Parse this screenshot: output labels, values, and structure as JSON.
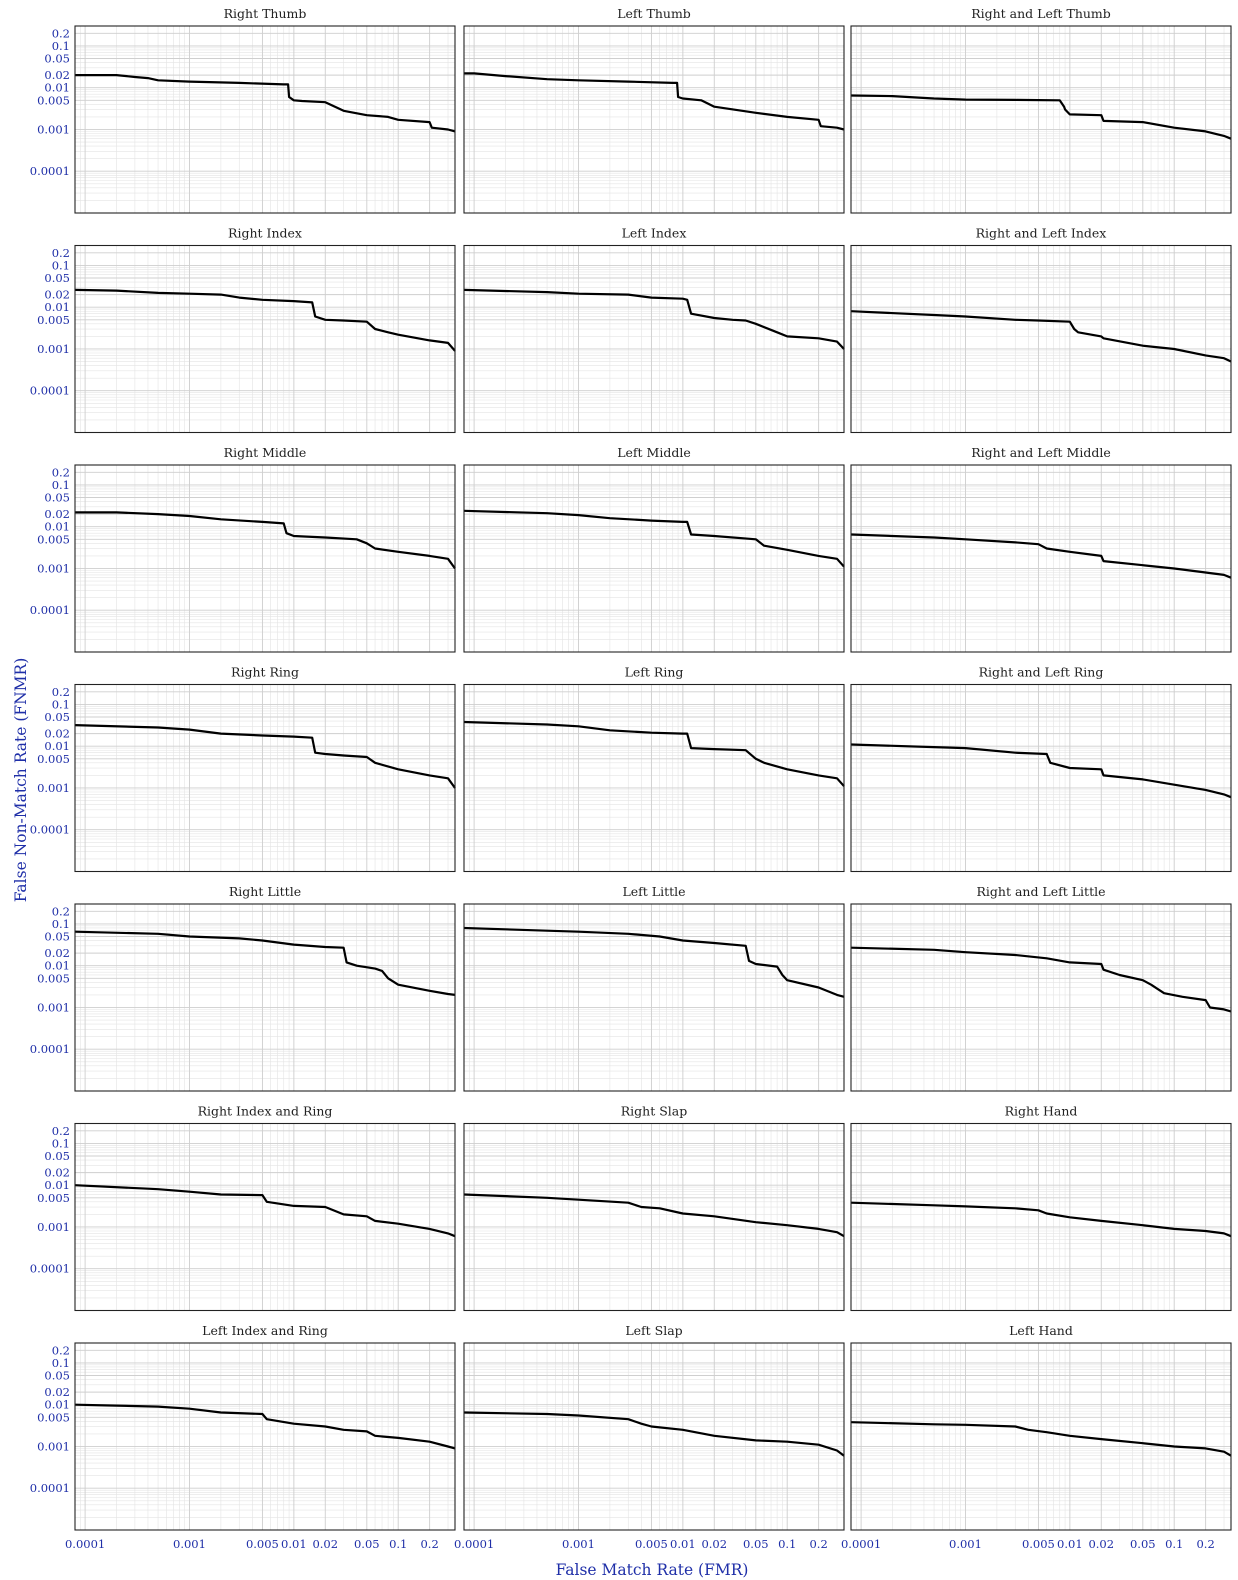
{
  "figure": {
    "xlabel": "False Match Rate (FMR)",
    "ylabel": "False Non-Match Rate (FNMR)",
    "text_color": "#1f2fa8",
    "line_color": "#000000"
  },
  "chart_data": {
    "type": "line",
    "layout": "7 rows x 3 columns facet grid",
    "x_scale": "log",
    "y_scale": "log",
    "xlim": [
      8e-05,
      0.35
    ],
    "ylim": [
      1e-05,
      0.3
    ],
    "grid": true,
    "x_ticks": [
      0.0001,
      0.001,
      0.005,
      0.01,
      0.02,
      0.05,
      0.1,
      0.2
    ],
    "x_tick_labels": [
      "0.0001",
      "0.001",
      "0.005",
      "0.01",
      "0.02",
      "0.05",
      "0.1",
      "0.2"
    ],
    "y_ticks": [
      0.2,
      0.1,
      0.05,
      0.02,
      0.01,
      0.005,
      0.001,
      0.0001
    ],
    "y_tick_labels": [
      "0.2",
      "0.1",
      "0.05",
      "0.02",
      "0.01",
      "0.005",
      "0.001",
      "0.0001"
    ],
    "panels": [
      {
        "title": "Right Thumb",
        "x": [
          8e-05,
          0.0002,
          0.0003,
          0.0004,
          0.0005,
          0.001,
          0.003,
          0.008,
          0.0088,
          0.009,
          0.01,
          0.012,
          0.02,
          0.03,
          0.05,
          0.08,
          0.1,
          0.2,
          0.21,
          0.3,
          0.35
        ],
        "y": [
          0.02,
          0.02,
          0.018,
          0.017,
          0.015,
          0.014,
          0.013,
          0.012,
          0.012,
          0.006,
          0.005,
          0.0048,
          0.0045,
          0.0028,
          0.0022,
          0.002,
          0.0017,
          0.0015,
          0.0011,
          0.001,
          0.0009
        ]
      },
      {
        "title": "Left Thumb",
        "x": [
          8e-05,
          0.0001,
          0.0002,
          0.0005,
          0.001,
          0.003,
          0.008,
          0.0088,
          0.009,
          0.01,
          0.015,
          0.02,
          0.05,
          0.1,
          0.2,
          0.21,
          0.3,
          0.35
        ],
        "y": [
          0.022,
          0.022,
          0.019,
          0.016,
          0.015,
          0.014,
          0.013,
          0.013,
          0.006,
          0.0055,
          0.005,
          0.0035,
          0.0025,
          0.002,
          0.0017,
          0.0012,
          0.0011,
          0.001
        ]
      },
      {
        "title": "Right and Left Thumb",
        "x": [
          8e-05,
          0.0002,
          0.0005,
          0.001,
          0.003,
          0.008,
          0.0088,
          0.009,
          0.01,
          0.02,
          0.021,
          0.05,
          0.1,
          0.2,
          0.3,
          0.35
        ],
        "y": [
          0.0065,
          0.0063,
          0.0055,
          0.0052,
          0.0051,
          0.005,
          0.0035,
          0.003,
          0.0023,
          0.0022,
          0.0016,
          0.0015,
          0.0011,
          0.0009,
          0.0007,
          0.0006
        ]
      },
      {
        "title": "Right Index",
        "x": [
          8e-05,
          0.0002,
          0.0005,
          0.001,
          0.002,
          0.003,
          0.005,
          0.01,
          0.015,
          0.016,
          0.02,
          0.03,
          0.05,
          0.06,
          0.08,
          0.1,
          0.2,
          0.3,
          0.35
        ],
        "y": [
          0.026,
          0.025,
          0.022,
          0.021,
          0.02,
          0.017,
          0.015,
          0.014,
          0.013,
          0.006,
          0.005,
          0.0048,
          0.0045,
          0.003,
          0.0025,
          0.0022,
          0.0016,
          0.0014,
          0.0009
        ]
      },
      {
        "title": "Left Index",
        "x": [
          8e-05,
          0.0005,
          0.001,
          0.003,
          0.005,
          0.01,
          0.011,
          0.012,
          0.02,
          0.03,
          0.04,
          0.05,
          0.08,
          0.1,
          0.2,
          0.3,
          0.35
        ],
        "y": [
          0.026,
          0.023,
          0.021,
          0.02,
          0.017,
          0.016,
          0.015,
          0.007,
          0.0055,
          0.005,
          0.0048,
          0.004,
          0.0025,
          0.002,
          0.0018,
          0.0015,
          0.001
        ]
      },
      {
        "title": "Right and Left Index",
        "x": [
          8e-05,
          0.0005,
          0.001,
          0.003,
          0.005,
          0.01,
          0.011,
          0.012,
          0.02,
          0.021,
          0.05,
          0.1,
          0.2,
          0.3,
          0.35
        ],
        "y": [
          0.008,
          0.0065,
          0.006,
          0.005,
          0.0048,
          0.0045,
          0.003,
          0.0025,
          0.002,
          0.0018,
          0.0012,
          0.001,
          0.0007,
          0.0006,
          0.0005
        ]
      },
      {
        "title": "Right Middle",
        "x": [
          8e-05,
          0.0002,
          0.0005,
          0.001,
          0.002,
          0.005,
          0.008,
          0.0085,
          0.01,
          0.02,
          0.04,
          0.05,
          0.06,
          0.1,
          0.2,
          0.3,
          0.35
        ],
        "y": [
          0.022,
          0.022,
          0.02,
          0.018,
          0.015,
          0.013,
          0.012,
          0.007,
          0.006,
          0.0055,
          0.005,
          0.004,
          0.003,
          0.0025,
          0.002,
          0.0017,
          0.001
        ]
      },
      {
        "title": "Left Middle",
        "x": [
          8e-05,
          0.0005,
          0.001,
          0.002,
          0.005,
          0.01,
          0.011,
          0.012,
          0.02,
          0.05,
          0.06,
          0.1,
          0.2,
          0.3,
          0.35
        ],
        "y": [
          0.024,
          0.021,
          0.019,
          0.016,
          0.014,
          0.013,
          0.013,
          0.0065,
          0.006,
          0.005,
          0.0035,
          0.0028,
          0.002,
          0.0017,
          0.0011
        ]
      },
      {
        "title": "Right and Left Middle",
        "x": [
          8e-05,
          0.0005,
          0.001,
          0.003,
          0.005,
          0.006,
          0.01,
          0.02,
          0.021,
          0.05,
          0.1,
          0.2,
          0.3,
          0.35
        ],
        "y": [
          0.0065,
          0.0055,
          0.005,
          0.0042,
          0.0038,
          0.003,
          0.0025,
          0.002,
          0.0015,
          0.0012,
          0.001,
          0.0008,
          0.0007,
          0.0006
        ]
      },
      {
        "title": "Right Ring",
        "x": [
          8e-05,
          0.0005,
          0.001,
          0.002,
          0.005,
          0.01,
          0.015,
          0.016,
          0.02,
          0.03,
          0.05,
          0.06,
          0.1,
          0.2,
          0.3,
          0.35
        ],
        "y": [
          0.032,
          0.028,
          0.025,
          0.02,
          0.018,
          0.017,
          0.016,
          0.007,
          0.0065,
          0.006,
          0.0055,
          0.004,
          0.0028,
          0.002,
          0.0017,
          0.001
        ]
      },
      {
        "title": "Left Ring",
        "x": [
          8e-05,
          0.0005,
          0.001,
          0.002,
          0.005,
          0.01,
          0.011,
          0.012,
          0.02,
          0.04,
          0.05,
          0.06,
          0.1,
          0.2,
          0.3,
          0.35
        ],
        "y": [
          0.038,
          0.033,
          0.03,
          0.024,
          0.021,
          0.02,
          0.02,
          0.009,
          0.0085,
          0.008,
          0.005,
          0.004,
          0.0028,
          0.002,
          0.0017,
          0.0011
        ]
      },
      {
        "title": "Right and Left Ring",
        "x": [
          8e-05,
          0.0005,
          0.001,
          0.003,
          0.006,
          0.0065,
          0.01,
          0.02,
          0.021,
          0.05,
          0.1,
          0.2,
          0.3,
          0.35
        ],
        "y": [
          0.011,
          0.0095,
          0.009,
          0.007,
          0.0065,
          0.004,
          0.003,
          0.0028,
          0.002,
          0.0016,
          0.0012,
          0.0009,
          0.0007,
          0.0006
        ]
      },
      {
        "title": "Right Little",
        "x": [
          8e-05,
          0.0005,
          0.001,
          0.003,
          0.005,
          0.01,
          0.02,
          0.03,
          0.032,
          0.04,
          0.06,
          0.07,
          0.08,
          0.1,
          0.2,
          0.3,
          0.35
        ],
        "y": [
          0.065,
          0.058,
          0.05,
          0.045,
          0.04,
          0.032,
          0.028,
          0.027,
          0.012,
          0.01,
          0.0085,
          0.0075,
          0.005,
          0.0035,
          0.0025,
          0.0021,
          0.002
        ]
      },
      {
        "title": "Left Little",
        "x": [
          8e-05,
          0.001,
          0.003,
          0.006,
          0.01,
          0.02,
          0.04,
          0.043,
          0.05,
          0.08,
          0.09,
          0.1,
          0.2,
          0.3,
          0.35
        ],
        "y": [
          0.08,
          0.065,
          0.058,
          0.05,
          0.04,
          0.035,
          0.03,
          0.013,
          0.011,
          0.0095,
          0.006,
          0.0045,
          0.003,
          0.002,
          0.0018
        ]
      },
      {
        "title": "Right and Left Little",
        "x": [
          8e-05,
          0.0005,
          0.001,
          0.003,
          0.006,
          0.01,
          0.02,
          0.021,
          0.03,
          0.05,
          0.06,
          0.08,
          0.12,
          0.2,
          0.22,
          0.3,
          0.35
        ],
        "y": [
          0.027,
          0.024,
          0.021,
          0.018,
          0.015,
          0.012,
          0.011,
          0.008,
          0.006,
          0.0045,
          0.0035,
          0.0022,
          0.0018,
          0.0015,
          0.001,
          0.0009,
          0.0008
        ]
      },
      {
        "title": "Right Index and Ring",
        "x": [
          8e-05,
          0.0005,
          0.001,
          0.002,
          0.005,
          0.0055,
          0.01,
          0.02,
          0.03,
          0.05,
          0.06,
          0.1,
          0.2,
          0.3,
          0.35
        ],
        "y": [
          0.01,
          0.008,
          0.007,
          0.006,
          0.0058,
          0.004,
          0.0032,
          0.003,
          0.002,
          0.0018,
          0.0014,
          0.0012,
          0.0009,
          0.0007,
          0.0006
        ]
      },
      {
        "title": "Right Slap",
        "x": [
          8e-05,
          0.0005,
          0.001,
          0.003,
          0.004,
          0.006,
          0.01,
          0.02,
          0.05,
          0.1,
          0.2,
          0.3,
          0.35
        ],
        "y": [
          0.006,
          0.005,
          0.0045,
          0.0038,
          0.003,
          0.0028,
          0.0021,
          0.0018,
          0.0013,
          0.0011,
          0.0009,
          0.00075,
          0.0006
        ]
      },
      {
        "title": "Right Hand",
        "x": [
          8e-05,
          0.0005,
          0.001,
          0.003,
          0.005,
          0.006,
          0.01,
          0.02,
          0.05,
          0.1,
          0.2,
          0.3,
          0.35
        ],
        "y": [
          0.0038,
          0.0033,
          0.0031,
          0.0028,
          0.0025,
          0.0021,
          0.0017,
          0.0014,
          0.0011,
          0.0009,
          0.0008,
          0.0007,
          0.0006
        ]
      },
      {
        "title": "Left Index and Ring",
        "x": [
          8e-05,
          0.0005,
          0.001,
          0.002,
          0.005,
          0.0055,
          0.01,
          0.02,
          0.03,
          0.05,
          0.06,
          0.1,
          0.2,
          0.3,
          0.35
        ],
        "y": [
          0.01,
          0.009,
          0.008,
          0.0065,
          0.006,
          0.0045,
          0.0035,
          0.003,
          0.0025,
          0.0023,
          0.0018,
          0.0016,
          0.0013,
          0.001,
          0.0009
        ]
      },
      {
        "title": "Left Slap",
        "x": [
          8e-05,
          0.0005,
          0.001,
          0.003,
          0.004,
          0.005,
          0.01,
          0.02,
          0.05,
          0.1,
          0.2,
          0.3,
          0.35
        ],
        "y": [
          0.0065,
          0.006,
          0.0055,
          0.0045,
          0.0035,
          0.003,
          0.0025,
          0.0018,
          0.0014,
          0.0013,
          0.0011,
          0.0008,
          0.0006
        ]
      },
      {
        "title": "Left Hand",
        "x": [
          8e-05,
          0.0005,
          0.001,
          0.003,
          0.004,
          0.006,
          0.01,
          0.02,
          0.05,
          0.1,
          0.2,
          0.3,
          0.35
        ],
        "y": [
          0.0038,
          0.0034,
          0.0033,
          0.003,
          0.0025,
          0.0022,
          0.0018,
          0.0015,
          0.0012,
          0.001,
          0.0009,
          0.00075,
          0.0006
        ]
      }
    ]
  }
}
